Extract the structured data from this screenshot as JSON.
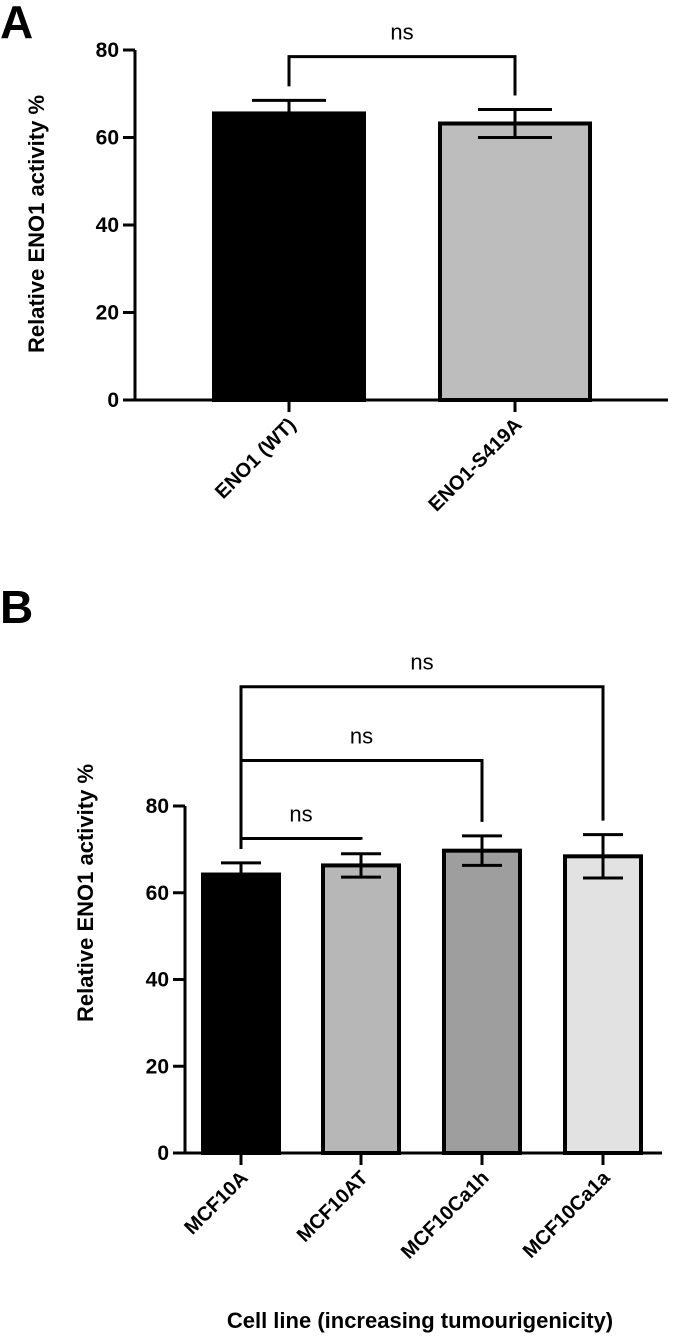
{
  "chart_data": [
    {
      "panel": "A",
      "type": "bar",
      "categories": [
        "ENO1 (WT)",
        "ENO1-S419A"
      ],
      "values": [
        65.5,
        63.2
      ],
      "errors": [
        3.0,
        3.2
      ],
      "colors": [
        "#000000",
        "#bdbdbd"
      ],
      "ylabel": "Relative ENO1 activity %",
      "xlabel": "",
      "ylim": [
        0,
        80
      ],
      "yticks": [
        0,
        20,
        40,
        60,
        80
      ],
      "significance": [
        {
          "from": 0,
          "to": 1,
          "label": "ns",
          "y": 78.5
        }
      ]
    },
    {
      "panel": "B",
      "type": "bar",
      "categories": [
        "MCF10A",
        "MCF10AT",
        "MCF10Ca1h",
        "MCF10Ca1a"
      ],
      "values": [
        64.2,
        66.3,
        69.7,
        68.4
      ],
      "errors": [
        2.7,
        2.7,
        3.4,
        5.0
      ],
      "colors": [
        "#000000",
        "#b7b7b7",
        "#9e9e9e",
        "#e2e2e2"
      ],
      "ylabel": "Relative ENO1 activity %",
      "xlabel": "Cell line (increasing tumourigenicity)",
      "ylim": [
        0,
        80
      ],
      "yticks": [
        0,
        20,
        40,
        60,
        80
      ],
      "significance": [
        {
          "from": 0,
          "to": 1,
          "label": "ns",
          "y": 72.5
        },
        {
          "from": 0,
          "to": 2,
          "label": "ns",
          "y": 90.5
        },
        {
          "from": 0,
          "to": 3,
          "label": "ns",
          "y": 107.5
        }
      ]
    }
  ]
}
